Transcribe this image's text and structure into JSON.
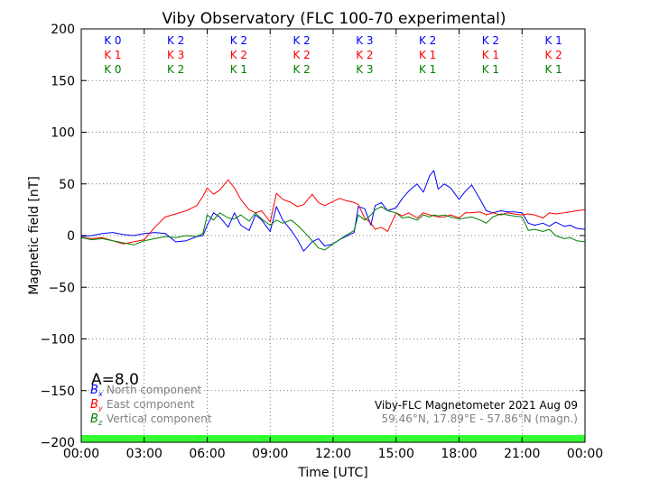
{
  "chart_data": {
    "type": "line",
    "title": "Viby Observatory (FLC 100-70 experimental)",
    "xlabel": "Time [UTC]",
    "ylabel": "Magnetic field [nT]",
    "xlim": [
      0,
      24
    ],
    "ylim": [
      -200,
      200
    ],
    "grid": true,
    "x_ticks": [
      0,
      3,
      6,
      9,
      12,
      15,
      18,
      21,
      24
    ],
    "x_tick_labels": [
      "00:00",
      "03:00",
      "06:00",
      "09:00",
      "12:00",
      "15:00",
      "18:00",
      "21:00",
      "00:00"
    ],
    "y_ticks": [
      200,
      150,
      100,
      50,
      0,
      -50,
      -100,
      -150,
      -200
    ],
    "y_tick_labels": [
      "200",
      "150",
      "100",
      "50",
      "0",
      "−50",
      "−100",
      "−150",
      "−200"
    ],
    "series": [
      {
        "name": "North component",
        "symbol": "B",
        "subscript": "x",
        "color": "#0000ff",
        "x": [
          0,
          0.5,
          1,
          1.5,
          2,
          2.5,
          3,
          3.5,
          4,
          4.5,
          5,
          5.5,
          5.8,
          6,
          6.3,
          6.6,
          7,
          7.3,
          7.6,
          8,
          8.3,
          8.6,
          9,
          9.3,
          9.6,
          10,
          10.3,
          10.6,
          11,
          11.3,
          11.6,
          12,
          12.3,
          12.6,
          13,
          13.2,
          13.5,
          13.8,
          14,
          14.3,
          14.6,
          15,
          15.3,
          15.6,
          16,
          16.3,
          16.6,
          16.8,
          17,
          17.3,
          17.6,
          18,
          18.3,
          18.6,
          19,
          19.3,
          19.6,
          20,
          20.3,
          20.6,
          21,
          21.3,
          21.6,
          22,
          22.3,
          22.6,
          23,
          23.3,
          23.6,
          24
        ],
        "y": [
          -1,
          0,
          2,
          3,
          1,
          0,
          2,
          3,
          2,
          -6,
          -5,
          -1,
          0,
          10,
          22,
          18,
          8,
          22,
          10,
          5,
          20,
          15,
          4,
          28,
          15,
          5,
          -4,
          -15,
          -6,
          -3,
          -10,
          -8,
          -4,
          -1,
          3,
          28,
          26,
          10,
          29,
          32,
          24,
          27,
          36,
          43,
          50,
          42,
          58,
          63,
          45,
          50,
          46,
          35,
          43,
          49,
          35,
          24,
          22,
          24,
          23,
          23,
          22,
          12,
          10,
          12,
          9,
          13,
          9,
          10,
          7,
          6
        ],
        "label": "North component"
      },
      {
        "name": "East component",
        "symbol": "B",
        "subscript": "y",
        "color": "#ff0000",
        "x": [
          0,
          0.5,
          1,
          1.5,
          2,
          2.5,
          3,
          3.5,
          4,
          4.5,
          5,
          5.5,
          5.8,
          6,
          6.3,
          6.6,
          7,
          7.3,
          7.6,
          8,
          8.3,
          8.6,
          9,
          9.3,
          9.6,
          10,
          10.3,
          10.6,
          11,
          11.3,
          11.6,
          12,
          12.3,
          12.6,
          13,
          13.2,
          13.5,
          13.8,
          14,
          14.3,
          14.6,
          15,
          15.3,
          15.6,
          16,
          16.3,
          16.6,
          16.8,
          17,
          17.3,
          17.6,
          18,
          18.3,
          18.6,
          19,
          19.3,
          19.6,
          20,
          20.3,
          20.6,
          21,
          21.3,
          21.6,
          22,
          22.3,
          22.6,
          23,
          23.3,
          23.6,
          24
        ],
        "y": [
          -2,
          -3,
          -2,
          -5,
          -8,
          -6,
          -4,
          8,
          18,
          21,
          24,
          29,
          38,
          46,
          40,
          44,
          54,
          46,
          35,
          25,
          22,
          24,
          13,
          41,
          35,
          32,
          28,
          30,
          40,
          32,
          29,
          33,
          36,
          34,
          32,
          30,
          17,
          12,
          6,
          8,
          4,
          22,
          19,
          22,
          17,
          22,
          20,
          19,
          18,
          18,
          20,
          17,
          22,
          22,
          23,
          20,
          22,
          20,
          22,
          21,
          20,
          21,
          20,
          17,
          22,
          21,
          22,
          23,
          24,
          25
        ],
        "label": "East component"
      },
      {
        "name": "Vertical component",
        "symbol": "B",
        "subscript": "z",
        "color": "#008000",
        "x": [
          0,
          0.5,
          1,
          1.5,
          2,
          2.5,
          3,
          3.5,
          4,
          4.5,
          5,
          5.5,
          5.8,
          6,
          6.3,
          6.6,
          7,
          7.3,
          7.6,
          8,
          8.3,
          8.6,
          9,
          9.3,
          9.6,
          10,
          10.3,
          10.6,
          11,
          11.3,
          11.6,
          12,
          12.3,
          12.6,
          13,
          13.2,
          13.5,
          13.8,
          14,
          14.3,
          14.6,
          15,
          15.3,
          15.6,
          16,
          16.3,
          16.6,
          16.8,
          17,
          17.3,
          17.6,
          18,
          18.3,
          18.6,
          19,
          19.3,
          19.6,
          20,
          20.3,
          20.6,
          21,
          21.3,
          21.6,
          22,
          22.3,
          22.6,
          23,
          23.3,
          23.6,
          24
        ],
        "y": [
          -2,
          -4,
          -3,
          -5,
          -7,
          -9,
          -5,
          -3,
          -1,
          -2,
          0,
          -1,
          2,
          20,
          15,
          22,
          17,
          16,
          20,
          14,
          22,
          16,
          10,
          15,
          12,
          15,
          10,
          4,
          -5,
          -12,
          -14,
          -8,
          -4,
          0,
          5,
          20,
          15,
          20,
          25,
          28,
          24,
          22,
          17,
          18,
          15,
          20,
          18,
          20,
          19,
          20,
          18,
          16,
          17,
          18,
          15,
          12,
          18,
          21,
          20,
          19,
          18,
          5,
          6,
          4,
          6,
          0,
          -3,
          -2,
          -5,
          -6
        ],
        "label": "Vertical component"
      }
    ],
    "k_indices": {
      "x": [
        1.5,
        4.5,
        7.5,
        10.5,
        13.5,
        16.5,
        19.5,
        22.5
      ],
      "rows": [
        {
          "color": "#0000ff",
          "labels": [
            "K 0",
            "K 2",
            "K 2",
            "K 2",
            "K 3",
            "K 2",
            "K 2",
            "K 1"
          ]
        },
        {
          "color": "#ff0000",
          "labels": [
            "K 1",
            "K 3",
            "K 2",
            "K 2",
            "K 2",
            "K 1",
            "K 1",
            "K 2"
          ]
        },
        {
          "color": "#008000",
          "labels": [
            "K 0",
            "K 2",
            "K 1",
            "K 2",
            "K 3",
            "K 1",
            "K 1",
            "K 1"
          ]
        }
      ]
    },
    "status_band_color": "#33ff33",
    "a_index": "A=8.0",
    "info_line1": "Viby-FLC Magnetometer 2021 Aug 09",
    "info_line2": "59.46°N, 17.89°E - 57.86°N (magn.)"
  }
}
